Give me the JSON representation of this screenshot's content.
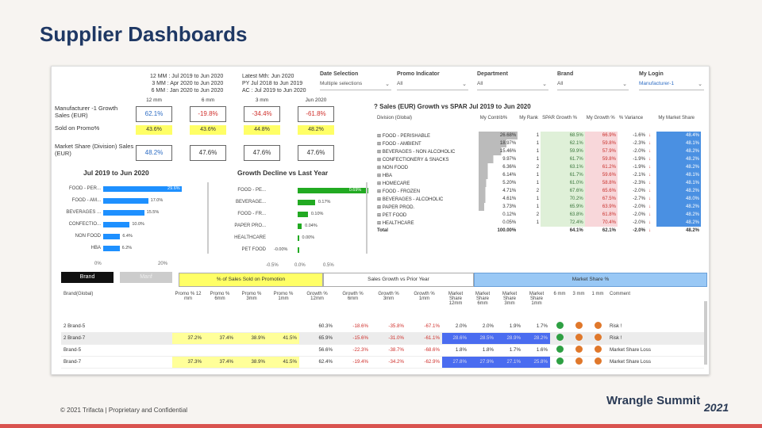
{
  "slide": {
    "title": "Supplier Dashboards",
    "footer": "© 2021 Trifacta | Proprietary and Confidential",
    "logo_text": "Wrangle Summit",
    "logo_year": "2021"
  },
  "periods": {
    "col1": [
      "12 MM : Jul 2019 to Jun 2020",
      "3 MM : Apr 2020 to Jun 2020",
      "6 MM : Jan 2020 to Jun 2020"
    ],
    "col2": [
      "Latest Mth: Jun 2020",
      "PY Jul 2018 to Jun 2019",
      "AC : Jul 2019 to Jun 2020"
    ]
  },
  "filters": [
    {
      "label": "Date Selection",
      "value": "Multiple selections"
    },
    {
      "label": "Promo Indicator",
      "value": "All"
    },
    {
      "label": "Department",
      "value": "All"
    },
    {
      "label": "Brand",
      "value": "All"
    },
    {
      "label": "My Login",
      "value": "Manufacturer-1"
    }
  ],
  "kpi": {
    "col_headers": [
      "12 mm",
      "6 mm",
      "3 mm",
      "Jun 2020"
    ],
    "growth_label": "Manufacturer -1 Growth Sales (EUR)",
    "growth": [
      "62.1%",
      "-19.8%",
      "-34.4%",
      "-61.8%"
    ],
    "promo_label": "Sold on Promo%",
    "promo": [
      "43.6%",
      "43.6%",
      "44.8%",
      "48.2%"
    ],
    "share_label": "Market Share (Division) Sales (EUR)",
    "share": [
      "48.2%",
      "47.6%",
      "47.6%",
      "47.6%"
    ]
  },
  "left_chart": {
    "title": "Jul 2019 to Jun 2020",
    "cats": [
      "FOOD - PER...",
      "FOOD - AM...",
      "BEVERAGES ...",
      "CONFECTIO...",
      "NON FOOD",
      "HBA"
    ],
    "values": [
      29.6,
      17.0,
      15.5,
      10.0,
      6.4,
      6.2
    ],
    "labels": [
      "29.6%",
      "17.0%",
      "15.5%",
      "10.0%",
      "6.4%",
      "6.2%"
    ],
    "ticks": [
      "0%",
      "20%"
    ]
  },
  "mid_chart": {
    "title": "Growth Decline vs Last Year",
    "cats": [
      "FOOD - PE...",
      "BEVERAGE...",
      "FOOD - FR...",
      "PAPER PRO...",
      "HEALTHCARE",
      "PET FOOD"
    ],
    "values": [
      0.69,
      0.17,
      0.1,
      0.04,
      0.0,
      -0.0
    ],
    "labels": [
      "0.69%",
      "0.17%",
      "0.10%",
      "0.04%",
      "0.00%",
      "-0.00%"
    ],
    "ticks": [
      "-0.5%",
      "0.0%",
      "0.5%"
    ]
  },
  "sales_table": {
    "title": "Sales (EUR) Growth vs SPAR Jul 2019 to Jun 2020",
    "headers": [
      "Division (Global)",
      "My Contrib%",
      "My Rank",
      "SPAR Growth %",
      "My Growth %",
      "% Variance",
      "",
      "My Market Share"
    ],
    "rows": [
      [
        "FOOD - PERISHABLE",
        "26.68%",
        "1",
        "68.5%",
        "66.9%",
        "-1.6%",
        "↓",
        "48.4%"
      ],
      [
        "FOOD - AMBIENT",
        "18.97%",
        "1",
        "62.1%",
        "59.8%",
        "-2.3%",
        "↓",
        "48.1%"
      ],
      [
        "BEVERAGES - NON ALCOHOLIC",
        "15.46%",
        "1",
        "59.9%",
        "57.9%",
        "-2.0%",
        "↓",
        "48.2%"
      ],
      [
        "CONFECTIONERY & SNACKS",
        "9.97%",
        "1",
        "61.7%",
        "59.8%",
        "-1.9%",
        "↓",
        "48.2%"
      ],
      [
        "NON FOOD",
        "6.36%",
        "2",
        "63.1%",
        "61.2%",
        "-1.9%",
        "↓",
        "48.2%"
      ],
      [
        "HBA",
        "6.14%",
        "1",
        "61.7%",
        "59.6%",
        "-2.1%",
        "↓",
        "48.1%"
      ],
      [
        "HOMECARE",
        "5.20%",
        "1",
        "61.0%",
        "58.8%",
        "-2.3%",
        "↓",
        "48.1%"
      ],
      [
        "FOOD - FROZEN",
        "4.71%",
        "2",
        "67.6%",
        "65.6%",
        "-2.0%",
        "↓",
        "48.2%"
      ],
      [
        "BEVERAGES - ALCOHOLIC",
        "4.61%",
        "1",
        "70.2%",
        "67.5%",
        "-2.7%",
        "↓",
        "48.0%"
      ],
      [
        "PAPER PROD.",
        "3.73%",
        "1",
        "65.9%",
        "63.9%",
        "-2.0%",
        "↓",
        "48.2%"
      ],
      [
        "PET FOOD",
        "0.12%",
        "2",
        "63.8%",
        "61.8%",
        "-2.0%",
        "↓",
        "48.2%"
      ],
      [
        "HEALTHCARE",
        "0.05%",
        "1",
        "72.4%",
        "70.4%",
        "-2.0%",
        "↓",
        "48.2%"
      ]
    ],
    "total": [
      "Total",
      "100.00%",
      "",
      "64.1%",
      "62.1%",
      "-2.0%",
      "↓",
      "48.2%"
    ]
  },
  "toggle": {
    "brand": "Brand",
    "manf": "Manf"
  },
  "band_headers": [
    "% of Sales Sold on Promotion",
    "Sales Growth vs Prior Year",
    "Market Share %"
  ],
  "brand_table": {
    "headers": [
      "Brand(Global)",
      "Promo % 12 mm",
      "Promo % 6mm",
      "Promo % 3mm",
      "Promo % 1mm",
      "Growth % 12mm",
      "Growth % 6mm",
      "Growth % 3mm",
      "Growth % 1mm",
      "Market Share 12mm",
      "Market Share 6mm",
      "Market Share 3mm",
      "Market Share 1mm",
      "6 mm",
      "3 mm",
      "1 mm",
      "Comment"
    ],
    "rows": [
      [
        "2 Brand-5",
        "",
        "",
        "",
        "",
        "60.3%",
        "-18.6%",
        "-35.8%",
        "-67.1%",
        "2.0%",
        "2.0%",
        "1.9%",
        "1.7%",
        "green",
        "orange",
        "orange",
        "Risk !"
      ],
      [
        "2 Brand-7",
        "37.2%",
        "37.4%",
        "38.9%",
        "41.5%",
        "65.9%",
        "-15.6%",
        "-31.0%",
        "-61.1%",
        "28.6%",
        "28.5%",
        "28.9%",
        "28.2%",
        "green",
        "orange",
        "orange",
        "Risk !"
      ],
      [
        "Brand-5",
        "",
        "",
        "",
        "",
        "56.6%",
        "-22.3%",
        "-38.7%",
        "-68.6%",
        "1.8%",
        "1.8%",
        "1.7%",
        "1.6%",
        "green",
        "orange",
        "orange",
        "Market Share Loss"
      ],
      [
        "Brand-7",
        "37.3%",
        "37.4%",
        "38.9%",
        "41.5%",
        "62.4%",
        "-19.4%",
        "-34.2%",
        "-62.9%",
        "27.8%",
        "27.9%",
        "27.1%",
        "25.8%",
        "green",
        "orange",
        "orange",
        "Market Share Loss"
      ]
    ]
  },
  "colors": {
    "title": "#1f3864",
    "yellow": "#ffff66",
    "blue_bar": "#1e90ff",
    "green_bar": "#22aa22",
    "red": "#d0312d",
    "share_blue": "#4a6cf0",
    "band_blue": "#99c8f5"
  }
}
